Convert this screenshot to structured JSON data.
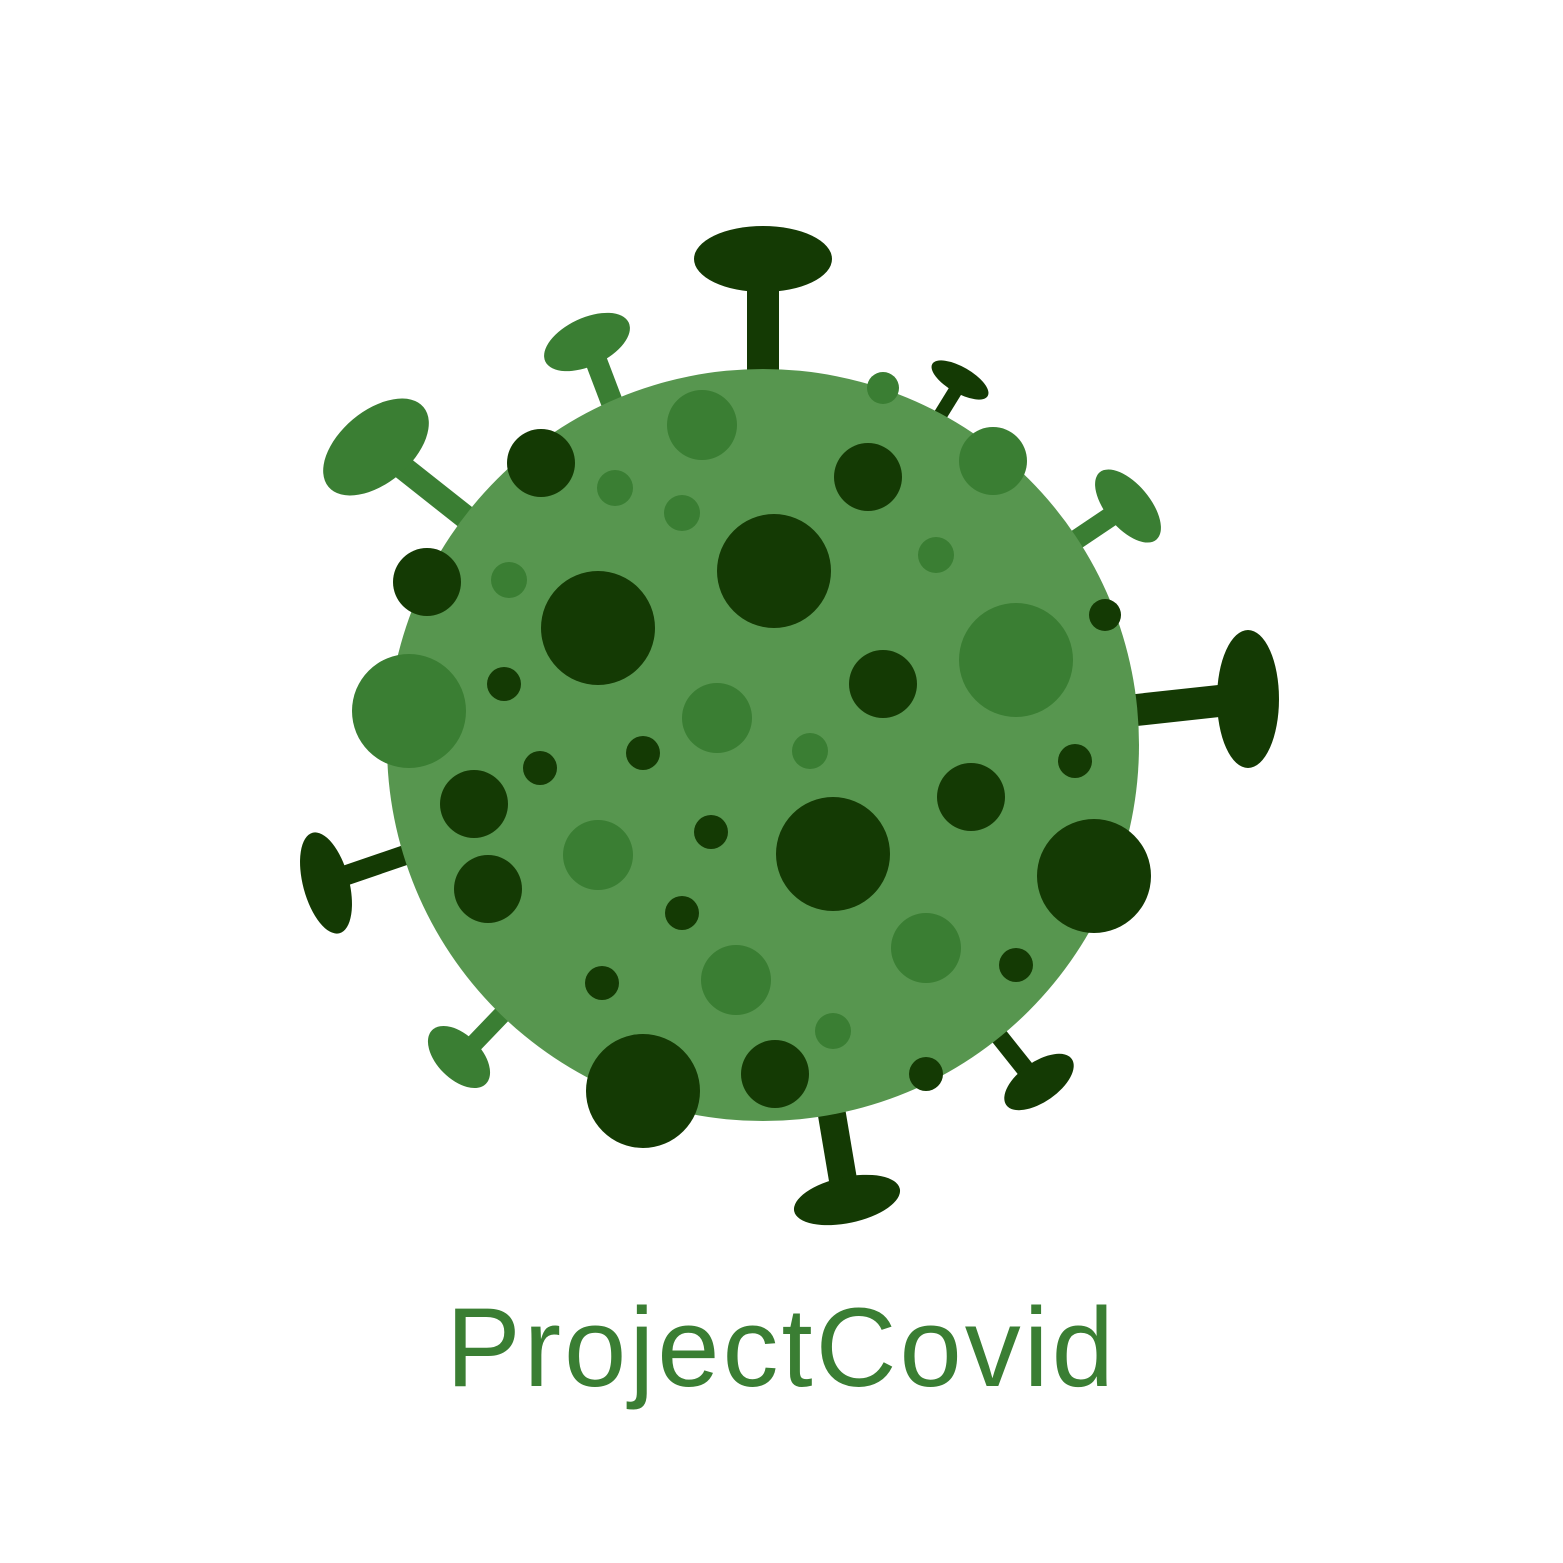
{
  "logo": {
    "wordmark": "ProjectCovid",
    "icon": "virus-icon",
    "colors": {
      "background": "#ffffff",
      "body": "#57964f",
      "dark": "#143a04",
      "medium": "#3a7e33",
      "text": "#3a7e33"
    }
  }
}
